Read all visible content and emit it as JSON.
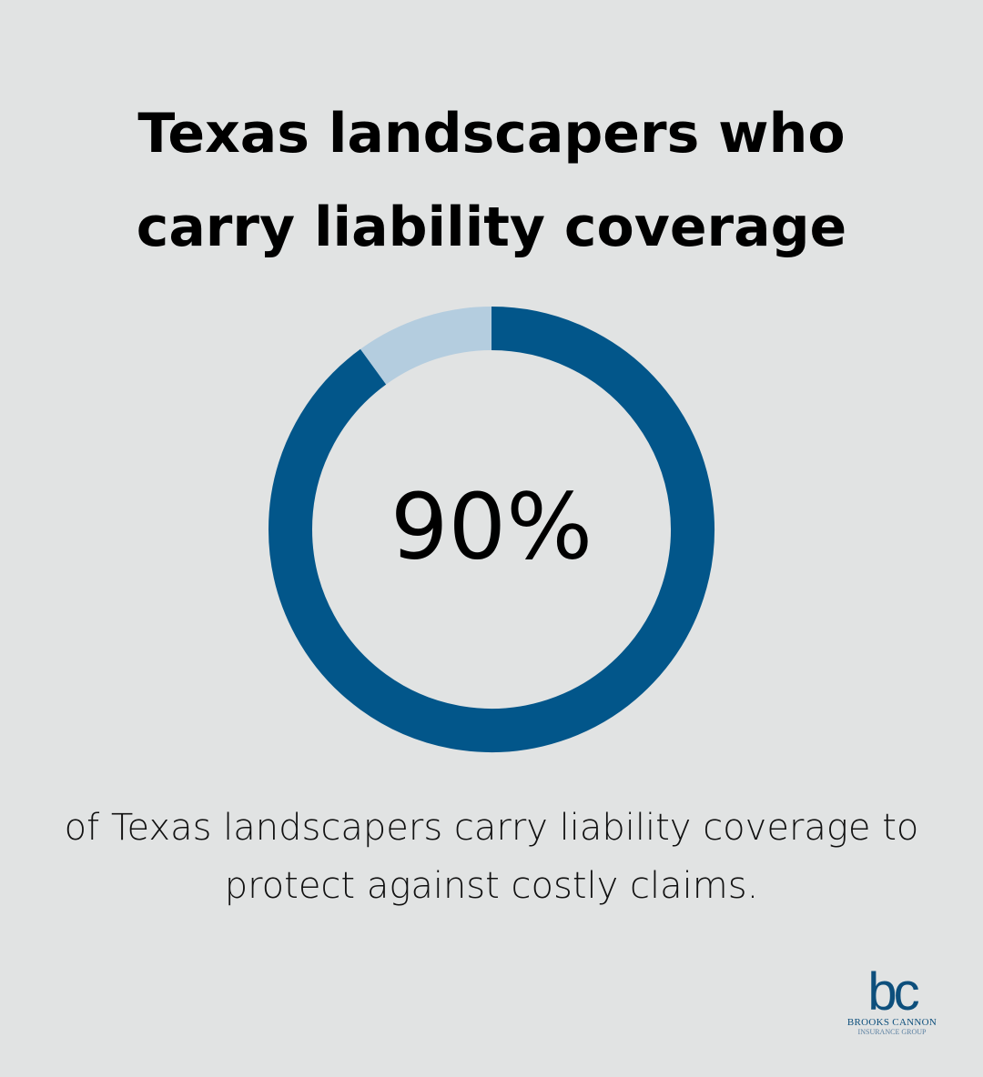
{
  "chart_data": {
    "type": "donut",
    "title": "Texas landscapers who carry liability coverage",
    "values": [
      90,
      10
    ],
    "value_labels": [
      "90%",
      null
    ],
    "colors": [
      "#02568a",
      "#b4cddf"
    ],
    "caption": "of Texas landscapers carry liability coverage to protect against costly claims."
  },
  "logo": {
    "mark": "bc",
    "name": "BROOKS CANNON",
    "tagline": "INSURANCE GROUP"
  }
}
